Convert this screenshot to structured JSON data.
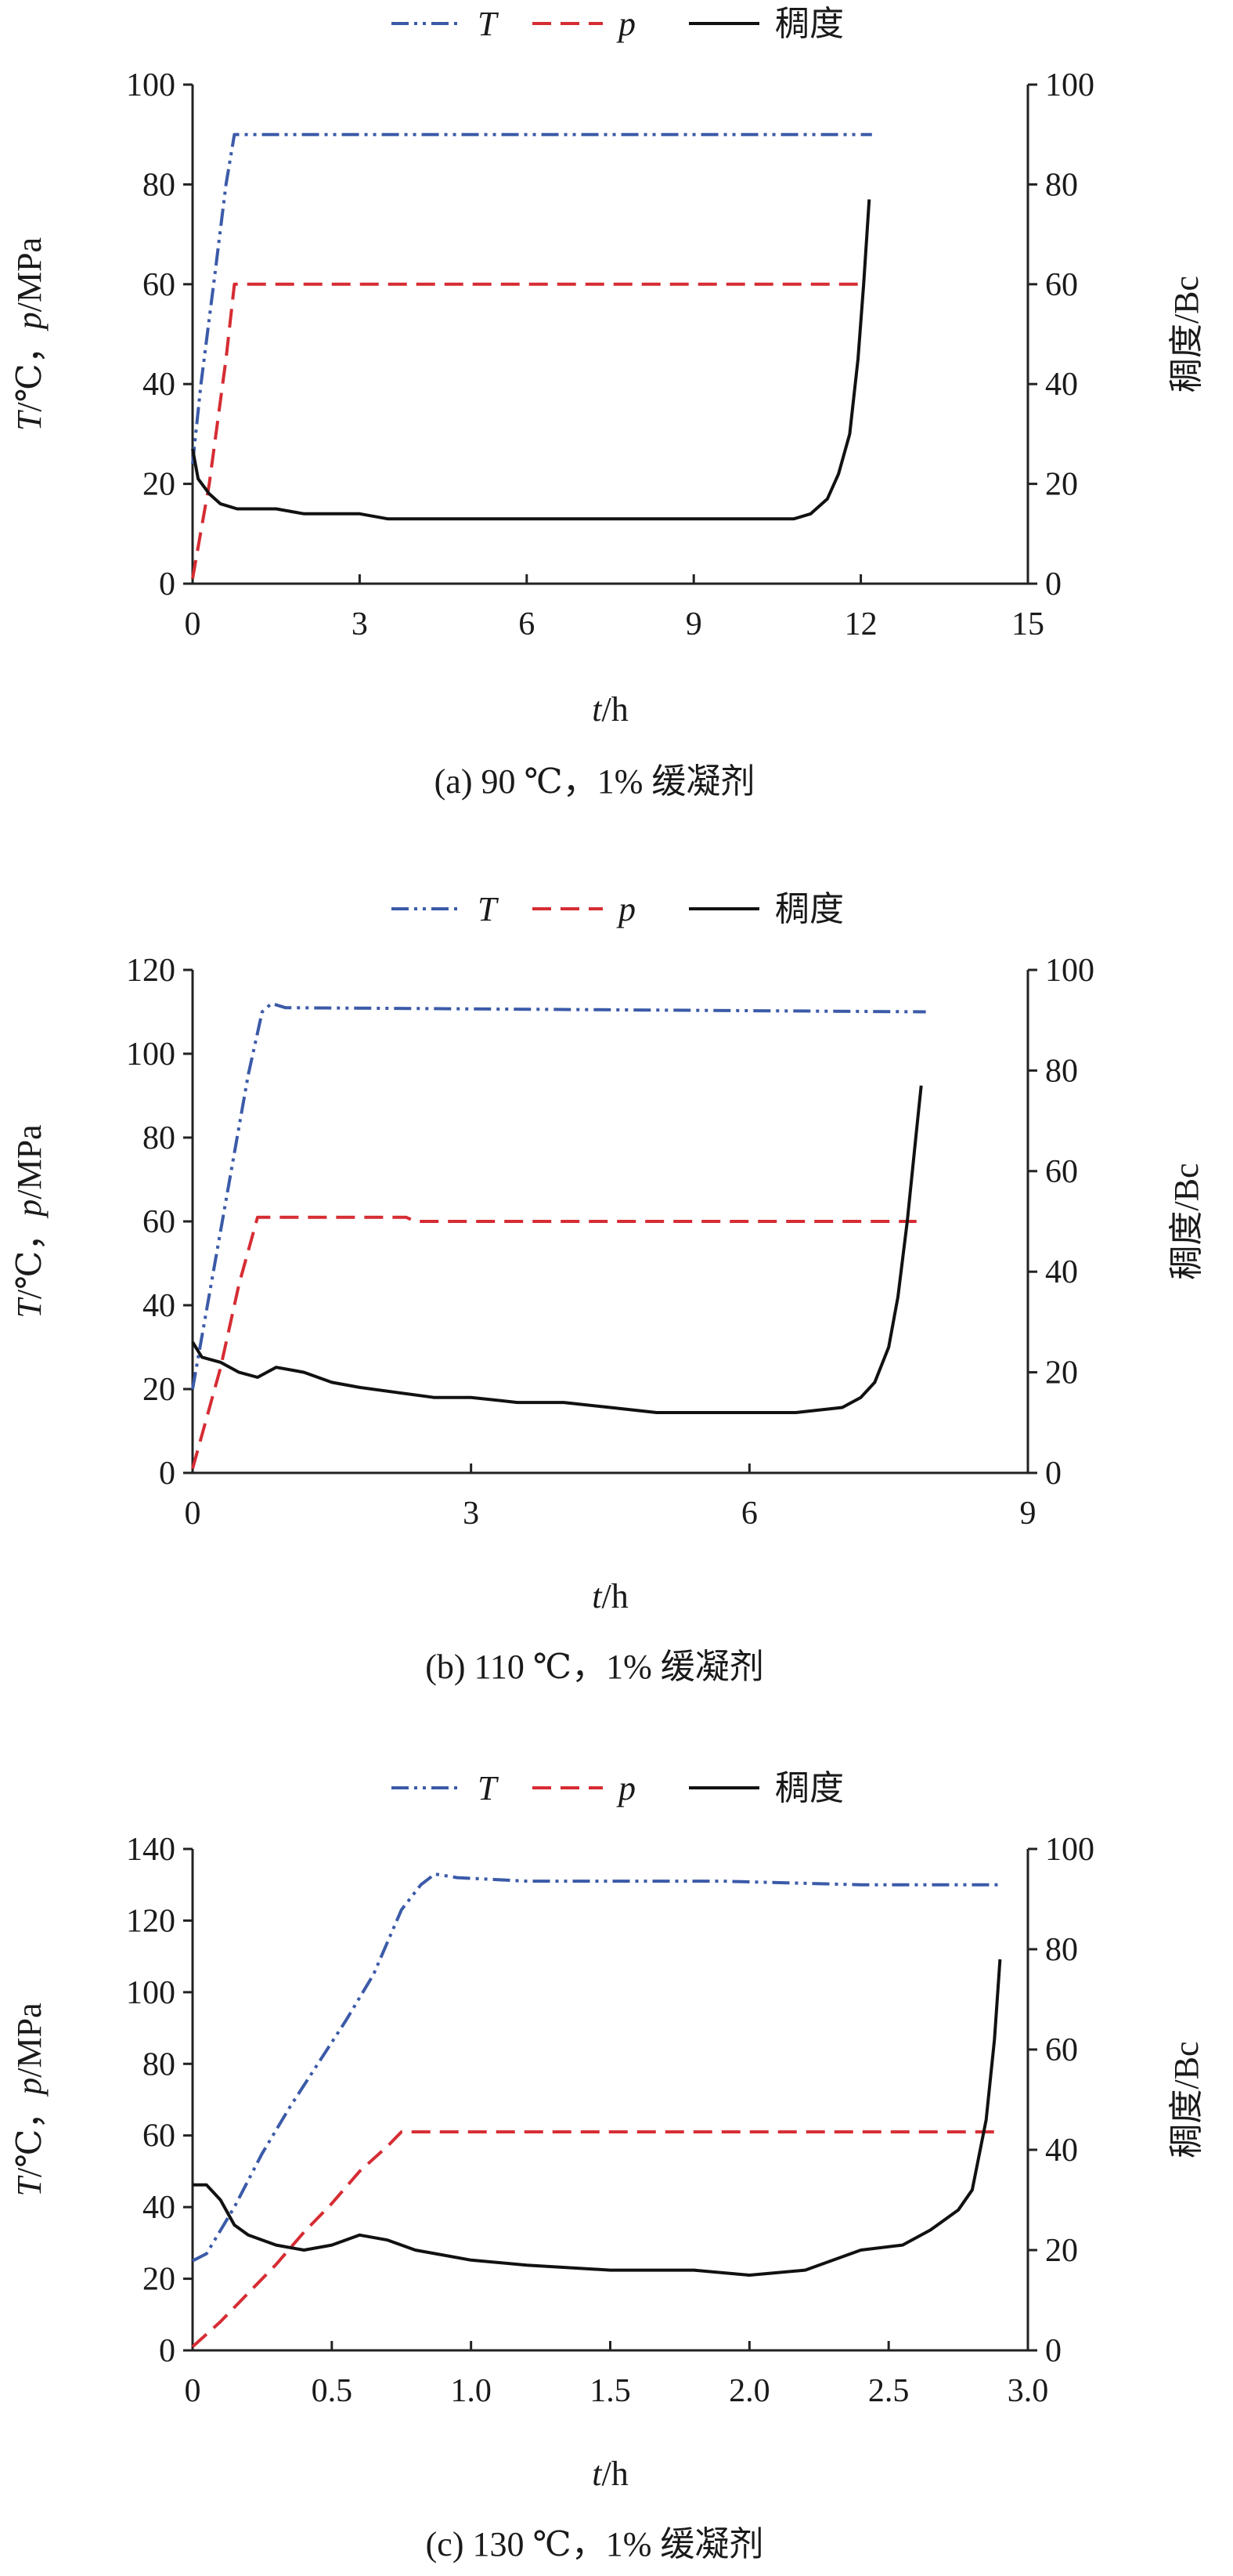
{
  "chart_data": [
    {
      "type": "line",
      "caption": "(a) 90 ℃，1% 缓凝剂",
      "legend": [
        {
          "label": "T",
          "italic": true,
          "color": "#3b5aa8",
          "dash": "dashdotdot"
        },
        {
          "label": "p",
          "italic": true,
          "color": "#d62c33",
          "dash": "dashed"
        },
        {
          "label": "稠度",
          "italic": false,
          "color": "#111111",
          "dash": "solid"
        }
      ],
      "xlabel": {
        "var": "t",
        "unit": "/h"
      },
      "ylabel_left": {
        "var1": "T",
        "unit1": "/℃，",
        "var2": "p",
        "unit2": "/MPa"
      },
      "ylabel_right": "稠度/Bc",
      "xlim": [
        0,
        15
      ],
      "xticks": [
        0,
        3,
        6,
        9,
        12,
        15
      ],
      "xtick_labels": [
        "0",
        "3",
        "6",
        "9",
        "12",
        "15"
      ],
      "ylim_left": [
        0,
        100
      ],
      "yticks_left": [
        0,
        20,
        40,
        60,
        80,
        100
      ],
      "ylim_right": [
        0,
        100
      ],
      "yticks_right": [
        0,
        20,
        40,
        60,
        80,
        100
      ],
      "grid": false,
      "series": [
        {
          "name": "T",
          "axis": "left",
          "x": [
            0,
            0.15,
            0.4,
            0.6,
            0.75,
            0.8,
            12.2
          ],
          "y": [
            24,
            40,
            62,
            80,
            90,
            90,
            90
          ]
        },
        {
          "name": "p",
          "axis": "left",
          "x": [
            0,
            0.3,
            0.6,
            0.75,
            0.8,
            12.1
          ],
          "y": [
            1,
            20,
            45,
            60,
            60,
            60
          ]
        },
        {
          "name": "稠度",
          "axis": "right",
          "x": [
            0,
            0.1,
            0.3,
            0.5,
            0.8,
            1.0,
            1.5,
            2.0,
            2.5,
            3.0,
            3.5,
            4.5,
            6,
            8,
            10,
            10.8,
            11.1,
            11.4,
            11.6,
            11.8,
            11.95,
            12.05,
            12.15
          ],
          "y": [
            27,
            21,
            18,
            16,
            15,
            15,
            15,
            14,
            14,
            14,
            13,
            13,
            13,
            13,
            13,
            13,
            14,
            17,
            22,
            30,
            45,
            60,
            77
          ]
        }
      ]
    },
    {
      "type": "line",
      "caption": "(b) 110 ℃，1% 缓凝剂",
      "legend": [
        {
          "label": "T",
          "italic": true,
          "color": "#3b5aa8",
          "dash": "dashdotdot"
        },
        {
          "label": "p",
          "italic": true,
          "color": "#d62c33",
          "dash": "dashed"
        },
        {
          "label": "稠度",
          "italic": false,
          "color": "#111111",
          "dash": "solid"
        }
      ],
      "xlabel": {
        "var": "t",
        "unit": "/h"
      },
      "ylabel_left": {
        "var1": "T",
        "unit1": "/℃，",
        "var2": "p",
        "unit2": "/MPa"
      },
      "ylabel_right": "稠度/Bc",
      "xlim": [
        0,
        9
      ],
      "xticks": [
        0,
        3,
        6,
        9
      ],
      "xtick_labels": [
        "0",
        "3",
        "6",
        "9"
      ],
      "ylim_left": [
        0,
        120
      ],
      "yticks_left": [
        0,
        20,
        40,
        60,
        80,
        100,
        120
      ],
      "ylim_right": [
        0,
        100
      ],
      "yticks_right": [
        0,
        20,
        40,
        60,
        80,
        100
      ],
      "grid": false,
      "series": [
        {
          "name": "T",
          "axis": "left",
          "x": [
            0,
            0.2,
            0.4,
            0.6,
            0.75,
            0.85,
            1.0,
            7.9
          ],
          "y": [
            20,
            45,
            70,
            95,
            110,
            112,
            111,
            110
          ]
        },
        {
          "name": "p",
          "axis": "left",
          "x": [
            0,
            0.3,
            0.5,
            0.7,
            0.75,
            2.3,
            2.4,
            7.8
          ],
          "y": [
            1,
            25,
            45,
            61,
            61,
            61,
            60,
            60
          ]
        },
        {
          "name": "稠度",
          "axis": "right",
          "x": [
            0,
            0.1,
            0.3,
            0.5,
            0.7,
            0.9,
            1.2,
            1.5,
            1.8,
            2.2,
            2.6,
            3.0,
            3.5,
            4.0,
            4.5,
            5,
            5.5,
            6,
            6.5,
            7.0,
            7.2,
            7.35,
            7.5,
            7.6,
            7.7,
            7.8,
            7.85
          ],
          "y": [
            26,
            23,
            22,
            20,
            19,
            21,
            20,
            18,
            17,
            16,
            15,
            15,
            14,
            14,
            13,
            12,
            12,
            12,
            12,
            13,
            15,
            18,
            25,
            35,
            50,
            68,
            77
          ]
        }
      ]
    },
    {
      "type": "line",
      "caption": "(c) 130 ℃，1% 缓凝剂",
      "legend": [
        {
          "label": "T",
          "italic": true,
          "color": "#3b5aa8",
          "dash": "dashdotdot"
        },
        {
          "label": "p",
          "italic": true,
          "color": "#d62c33",
          "dash": "dashed"
        },
        {
          "label": "稠度",
          "italic": false,
          "color": "#111111",
          "dash": "solid"
        }
      ],
      "xlabel": {
        "var": "t",
        "unit": "/h"
      },
      "ylabel_left": {
        "var1": "T",
        "unit1": "/℃，",
        "var2": "p",
        "unit2": "/MPa"
      },
      "ylabel_right": "稠度/Bc",
      "xlim": [
        0,
        3.0
      ],
      "xticks": [
        0,
        0.5,
        1.0,
        1.5,
        2.0,
        2.5,
        3.0
      ],
      "xtick_labels": [
        "0",
        "0.5",
        "1.0",
        "1.5",
        "2.0",
        "2.5",
        "3.0"
      ],
      "ylim_left": [
        0,
        140
      ],
      "yticks_left": [
        0,
        20,
        40,
        60,
        80,
        100,
        120,
        140
      ],
      "ylim_right": [
        0,
        100
      ],
      "yticks_right": [
        0,
        20,
        40,
        60,
        80,
        100
      ],
      "grid": false,
      "series": [
        {
          "name": "T",
          "axis": "left",
          "x": [
            0,
            0.05,
            0.15,
            0.25,
            0.35,
            0.45,
            0.55,
            0.65,
            0.75,
            0.82,
            0.87,
            0.95,
            1.2,
            1.5,
            1.9,
            2.4,
            2.9
          ],
          "y": [
            25,
            27,
            40,
            55,
            68,
            80,
            92,
            105,
            123,
            130,
            133,
            132,
            131,
            131,
            131,
            130,
            130
          ]
        },
        {
          "name": "p",
          "axis": "left",
          "x": [
            0,
            0.1,
            0.2,
            0.3,
            0.4,
            0.5,
            0.6,
            0.7,
            0.75,
            2.9
          ],
          "y": [
            1,
            8,
            16,
            24,
            33,
            41,
            50,
            57,
            61,
            61
          ]
        },
        {
          "name": "稠度",
          "axis": "right",
          "x": [
            0,
            0.05,
            0.1,
            0.15,
            0.2,
            0.3,
            0.4,
            0.5,
            0.6,
            0.7,
            0.8,
            0.9,
            1.0,
            1.2,
            1.5,
            1.8,
            2.0,
            2.2,
            2.4,
            2.55,
            2.65,
            2.7,
            2.75,
            2.8,
            2.85,
            2.88,
            2.9
          ],
          "y": [
            33,
            33,
            30,
            25,
            23,
            21,
            20,
            21,
            23,
            22,
            20,
            19,
            18,
            17,
            16,
            16,
            15,
            16,
            20,
            21,
            24,
            26,
            28,
            32,
            46,
            62,
            78
          ]
        }
      ]
    }
  ]
}
